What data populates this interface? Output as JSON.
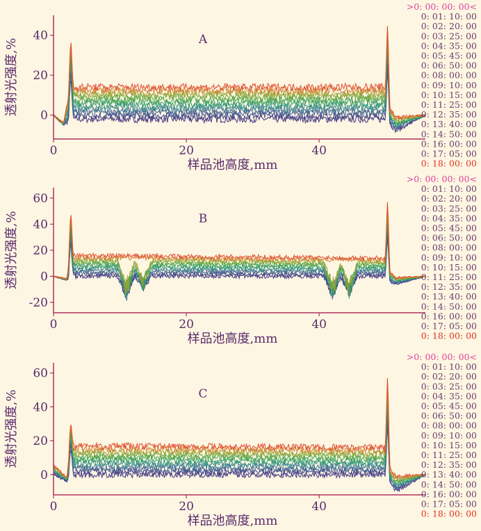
{
  "colors": {
    "background": "#fdf6e3",
    "axis": "#b03060",
    "text": "#5a2a6a",
    "legend_first": "#e0409a",
    "legend_mid": "#6a3b6a",
    "legend_last": "#e03020"
  },
  "legend_entries": [
    ">0: 00: 00: 00<",
    "0: 01: 10: 00",
    "0: 02: 20: 00",
    "0: 03: 25: 00",
    "0: 04: 35: 00",
    "0: 05: 45: 00",
    "0: 06: 50: 00",
    "0: 08: 00: 00",
    "0: 09: 10: 00",
    "0: 10: 15: 00",
    "0: 11: 25: 00",
    "0: 12: 35: 00",
    "0: 13: 40: 00",
    "0: 14: 50: 00",
    "0: 16: 00: 00",
    "0: 17: 05: 00",
    "0: 18: 00: 00"
  ],
  "chart_data": [
    {
      "type": "line",
      "title": "A",
      "xlabel": "样品池高度,mm",
      "ylabel": "透射光强度,%",
      "xlim": [
        0,
        56
      ],
      "ylim": [
        -12,
        50
      ],
      "xticks": [
        0,
        20,
        40
      ],
      "yticks": [
        0,
        20,
        40
      ],
      "grid": false,
      "legend_placement": "right",
      "bands": [
        {
          "x": [
            0,
            1.5,
            2.6,
            49.8,
            50.5,
            51.6,
            56
          ],
          "top": [
            0,
            -4,
            14,
            14,
            4,
            -1,
            0
          ],
          "bottom": [
            0,
            -5,
            -2,
            -2,
            -4,
            -8,
            0
          ]
        }
      ],
      "peaks": [
        {
          "x": 2.6,
          "y": 39
        },
        {
          "x": 50.3,
          "y": 47
        }
      ]
    },
    {
      "type": "line",
      "title": "B",
      "xlabel": "样品池高度,mm",
      "ylabel": "透射光强度,%",
      "xlim": [
        0,
        56
      ],
      "ylim": [
        -28,
        68
      ],
      "xticks": [
        0,
        20,
        40
      ],
      "yticks": [
        -20,
        0,
        20,
        40,
        60
      ],
      "grid": false,
      "legend_placement": "right",
      "bands": [
        {
          "x": [
            0,
            2.0,
            2.6,
            49.8,
            50.5,
            51.6,
            56
          ],
          "top": [
            0,
            -2,
            16,
            14,
            4,
            -1,
            0
          ],
          "bottom": [
            0,
            -3,
            0,
            0,
            -4,
            -6,
            0
          ]
        }
      ],
      "dips": [
        {
          "x": 11.0,
          "y": -20
        },
        {
          "x": 13.5,
          "y": -12
        },
        {
          "x": 42.0,
          "y": -20
        },
        {
          "x": 44.5,
          "y": -18
        }
      ],
      "peaks": [
        {
          "x": 2.6,
          "y": 51
        },
        {
          "x": 50.3,
          "y": 60
        }
      ]
    },
    {
      "type": "line",
      "title": "C",
      "xlabel": "样品池高度,mm",
      "ylabel": "透射光强度,%",
      "xlim": [
        0,
        56
      ],
      "ylim": [
        -12,
        66
      ],
      "xticks": [
        0,
        20,
        40
      ],
      "yticks": [
        0,
        20,
        40,
        60
      ],
      "grid": false,
      "legend_placement": "right",
      "bands": [
        {
          "x": [
            0,
            2.0,
            2.6,
            49.8,
            50.5,
            51.6,
            56
          ],
          "top": [
            6,
            -2,
            17,
            16,
            4,
            -1,
            0
          ],
          "bottom": [
            0,
            -4,
            0,
            0,
            -4,
            -10,
            0
          ]
        }
      ],
      "peaks": [
        {
          "x": 2.6,
          "y": 31
        },
        {
          "x": 50.3,
          "y": 60
        }
      ]
    }
  ]
}
